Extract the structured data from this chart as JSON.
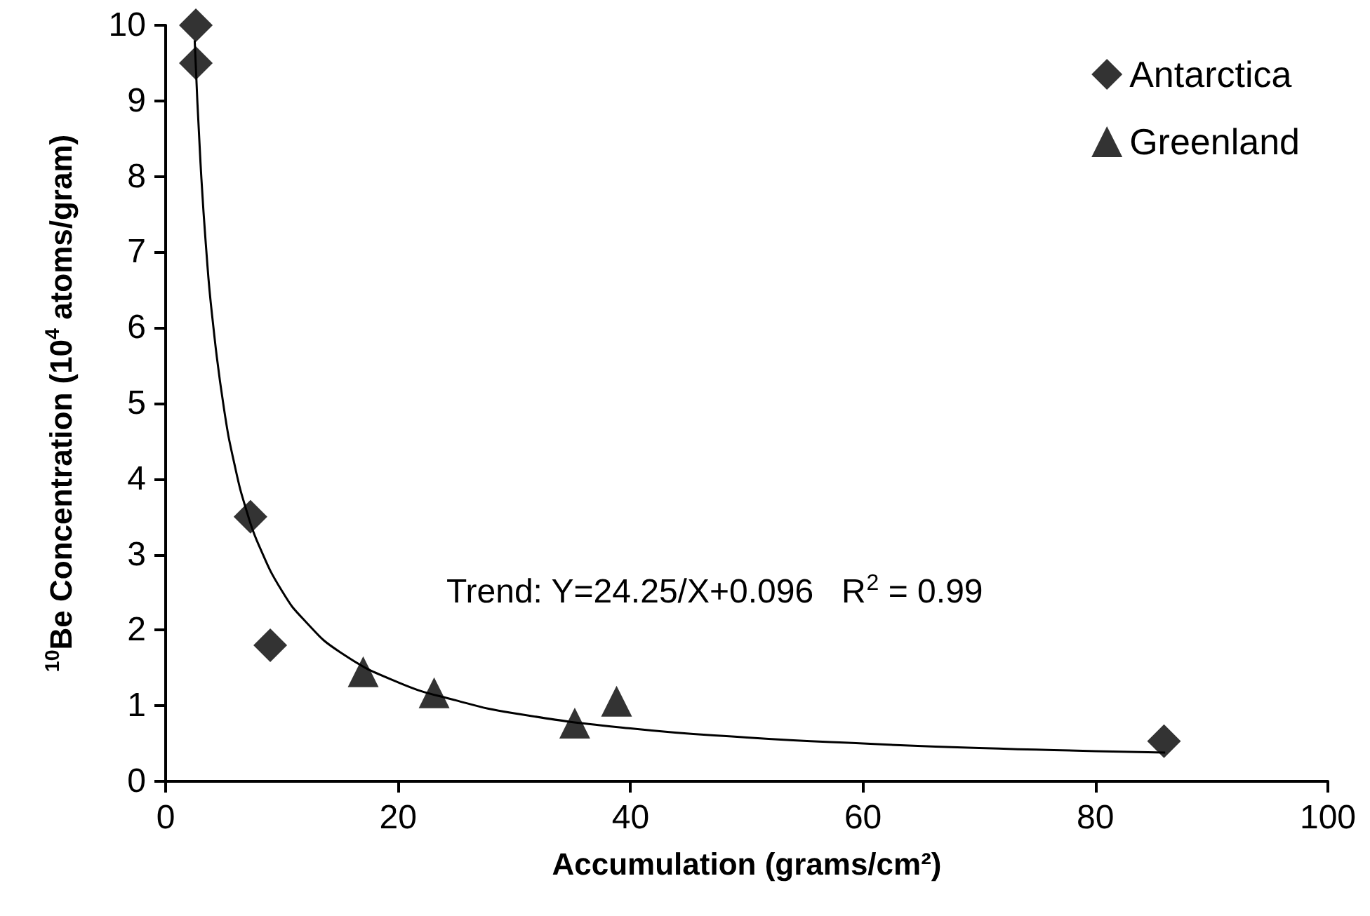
{
  "chart_data": {
    "type": "scatter",
    "xlabel": "Accumulation (grams/cm²)",
    "ylabel": "$^{10}$Be Concentration (10$^{4}$ atoms/gram)",
    "series": [
      {
        "name": "Antarctica",
        "color": "#000000",
        "marker": "diamond",
        "x": [
          2.6,
          2.6,
          7.3,
          9.0,
          85.9
        ],
        "values": [
          10,
          9.5,
          3.5,
          1.8,
          0.53
        ]
      },
      {
        "name": "Greenland",
        "color": "#000000",
        "marker": "triangle",
        "x": [
          17.0,
          23.1,
          35.2,
          38.8
        ],
        "values": [
          1.45,
          1.17,
          0.77,
          1.06
        ]
      },
      {
        "type": "line",
        "color": "#000000",
        "marker": "none",
        "line_style": "solid",
        "x": [
          2.5,
          3,
          3.5,
          4,
          5,
          6,
          7,
          8,
          10,
          12,
          15,
          20,
          25,
          30,
          40,
          50,
          60,
          70,
          80,
          86
        ],
        "values": [
          9.8,
          8.18,
          7.02,
          6.16,
          4.95,
          4.14,
          3.56,
          3.13,
          2.52,
          2.12,
          1.71,
          1.31,
          1.07,
          0.9,
          0.7,
          0.58,
          0.5,
          0.44,
          0.4,
          0.38
        ]
      }
    ],
    "annotations": [
      "Trend: Y=24.25/X+0.096   R$^{2}$ = 0.99"
    ],
    "xlim": [
      0,
      100
    ],
    "xticks": [
      0,
      20,
      40,
      60,
      80,
      100
    ],
    "ylim": [
      0,
      10
    ],
    "yticks": [
      0,
      1,
      2,
      3,
      4,
      5,
      6,
      7,
      8,
      9,
      10
    ],
    "grid": false,
    "legend": "top right"
  }
}
